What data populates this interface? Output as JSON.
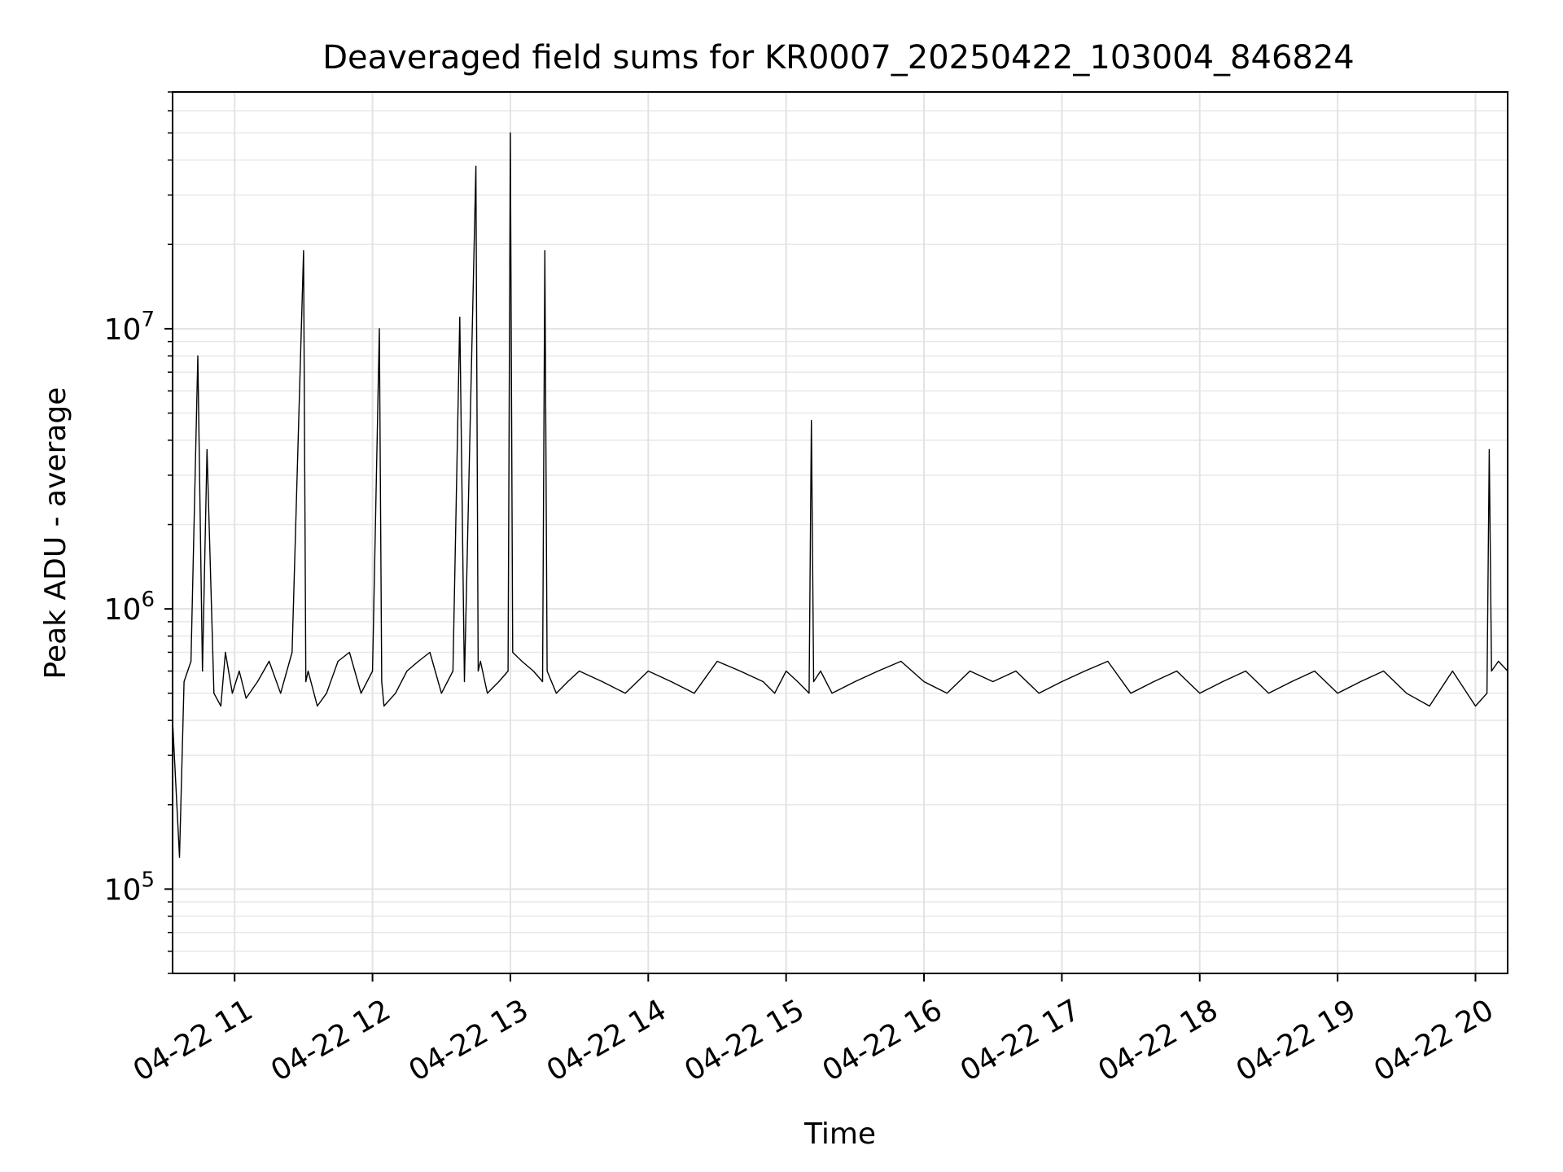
{
  "chart_data": {
    "type": "line",
    "title": "Deaveraged field sums for KR0007_20250422_103004_846824",
    "xlabel": "Time",
    "ylabel": "Peak ADU - average",
    "xscale": "time",
    "yscale": "log",
    "xlim": [
      "04-22 10:33",
      "04-22 20:14"
    ],
    "ylim": [
      50000,
      70000000
    ],
    "x_ticks": [
      "04-22 11",
      "04-22 12",
      "04-22 13",
      "04-22 14",
      "04-22 15",
      "04-22 16",
      "04-22 17",
      "04-22 18",
      "04-22 19",
      "04-22 20"
    ],
    "y_ticks": [
      {
        "base": "10",
        "exp": "5",
        "value": 100000
      },
      {
        "base": "10",
        "exp": "6",
        "value": 1000000
      },
      {
        "base": "10",
        "exp": "7",
        "value": 10000000
      }
    ],
    "grid": true,
    "line_color": "#000000",
    "series": [
      {
        "x": [
          "10:33",
          "10:36",
          "10:38",
          "10:41",
          "10:44",
          "10:46",
          "10:48",
          "10:51",
          "10:54",
          "10:56",
          "10:59",
          "11:02",
          "11:05",
          "11:10",
          "11:15",
          "11:20",
          "11:25",
          "11:30",
          "11:31",
          "11:32",
          "11:36",
          "11:40",
          "11:45",
          "11:50",
          "11:55",
          "12:00",
          "12:03",
          "12:04",
          "12:05",
          "12:10",
          "12:15",
          "12:20",
          "12:25",
          "12:30",
          "12:35",
          "12:38",
          "12:40",
          "12:45",
          "12:46",
          "12:47",
          "12:50",
          "12:55",
          "12:59",
          "13:00",
          "13:01",
          "13:05",
          "13:10",
          "13:14",
          "13:15",
          "13:16",
          "13:20",
          "13:25",
          "13:30",
          "13:40",
          "13:50",
          "14:00",
          "14:10",
          "14:20",
          "14:30",
          "14:40",
          "14:50",
          "14:55",
          "15:00",
          "15:05",
          "15:10",
          "15:11",
          "15:12",
          "15:15",
          "15:20",
          "15:30",
          "15:40",
          "15:50",
          "16:00",
          "16:10",
          "16:20",
          "16:30",
          "16:40",
          "16:50",
          "17:00",
          "17:10",
          "17:20",
          "17:30",
          "17:40",
          "17:50",
          "18:00",
          "18:10",
          "18:20",
          "18:30",
          "18:40",
          "18:50",
          "19:00",
          "19:10",
          "19:20",
          "19:30",
          "19:40",
          "19:50",
          "20:00",
          "20:05",
          "20:06",
          "20:07",
          "20:10",
          "20:14"
        ],
        "values": [
          400000,
          130000,
          550000,
          650000,
          8000000,
          600000,
          3700000,
          500000,
          450000,
          700000,
          500000,
          600000,
          480000,
          550000,
          650000,
          500000,
          700000,
          19000000,
          550000,
          600000,
          450000,
          500000,
          650000,
          700000,
          500000,
          600000,
          10000000,
          550000,
          450000,
          500000,
          600000,
          650000,
          700000,
          500000,
          600000,
          11000000,
          550000,
          38000000,
          600000,
          650000,
          500000,
          550000,
          600000,
          50000000,
          700000,
          650000,
          600000,
          550000,
          19000000,
          600000,
          500000,
          550000,
          600000,
          550000,
          500000,
          600000,
          550000,
          500000,
          650000,
          600000,
          550000,
          500000,
          600000,
          550000,
          500000,
          4700000,
          550000,
          600000,
          500000,
          550000,
          600000,
          650000,
          550000,
          500000,
          600000,
          550000,
          600000,
          500000,
          550000,
          600000,
          650000,
          500000,
          550000,
          600000,
          500000,
          550000,
          600000,
          500000,
          550000,
          600000,
          500000,
          550000,
          600000,
          500000,
          450000,
          600000,
          450000,
          500000,
          3700000,
          600000,
          650000,
          600000
        ]
      }
    ]
  }
}
